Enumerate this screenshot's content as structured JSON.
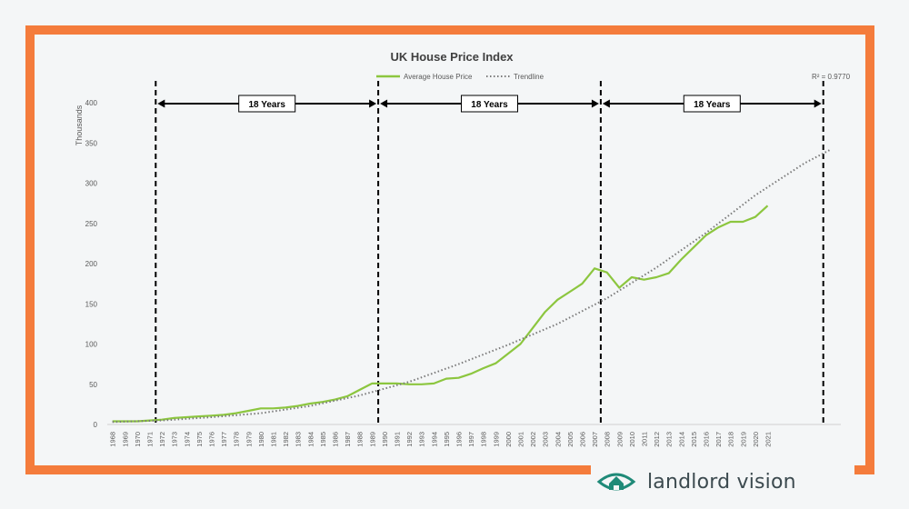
{
  "brand": {
    "name": "landlord vision",
    "icon": "eye-house-icon",
    "color": "#1f8a78"
  },
  "frame_color": "#f47c3c",
  "chart_data": {
    "type": "line",
    "title": "UK House Price Index",
    "ylabel": "Thousands",
    "xlabel": "",
    "ylim": [
      0,
      420
    ],
    "yticks": [
      0,
      50,
      100,
      150,
      200,
      250,
      300,
      350,
      400
    ],
    "grid": false,
    "legend_position": "top-center",
    "x_ticks": [
      "1968",
      "1969",
      "1970",
      "1971",
      "1972",
      "1973",
      "1974",
      "1975",
      "1976",
      "1977",
      "1978",
      "1979",
      "1980",
      "1981",
      "1982",
      "1983",
      "1984",
      "1985",
      "1986",
      "1987",
      "1988",
      "1989",
      "1990",
      "1991",
      "1992",
      "1993",
      "1994",
      "1995",
      "1996",
      "1997",
      "1998",
      "1999",
      "2000",
      "2001",
      "2002",
      "2003",
      "2004",
      "2005",
      "2006",
      "2007",
      "2008",
      "2009",
      "2010",
      "2011",
      "2012",
      "2013",
      "2014",
      "2015",
      "2016",
      "2017",
      "2018",
      "2019",
      "2020",
      "2021"
    ],
    "series": [
      {
        "name": "Average House Price",
        "color": "#8cc63f",
        "style": "solid",
        "x": [
          1968,
          1969,
          1970,
          1971,
          1972,
          1973,
          1974,
          1975,
          1976,
          1977,
          1978,
          1979,
          1980,
          1981,
          1982,
          1983,
          1984,
          1985,
          1986,
          1987,
          1988,
          1989,
          1990,
          1991,
          1992,
          1993,
          1994,
          1995,
          1996,
          1997,
          1998,
          1999,
          2000,
          2001,
          2002,
          2003,
          2004,
          2005,
          2006,
          2007,
          2008,
          2009,
          2010,
          2011,
          2012,
          2013,
          2014,
          2015,
          2016,
          2017,
          2018,
          2019,
          2020,
          2021
        ],
        "values": [
          4,
          4,
          4,
          5,
          6,
          8,
          9,
          10,
          11,
          12,
          14,
          17,
          20,
          20,
          21,
          23,
          26,
          28,
          31,
          35,
          43,
          51,
          51,
          51,
          50,
          50,
          51,
          57,
          58,
          63,
          70,
          76,
          88,
          100,
          120,
          140,
          155,
          165,
          175,
          194,
          189,
          170,
          183,
          180,
          183,
          188,
          205,
          220,
          235,
          245,
          252,
          252,
          258,
          272
        ]
      },
      {
        "name": "Trendline",
        "color": "#7a7a7a",
        "style": "dotted",
        "x": [
          1968,
          1972,
          1976,
          1980,
          1984,
          1988,
          1992,
          1996,
          2000,
          2004,
          2008,
          2012,
          2016,
          2020,
          2024,
          2026
        ],
        "values": [
          3,
          5,
          9,
          14,
          23,
          36,
          53,
          75,
          99,
          125,
          157,
          195,
          238,
          285,
          325,
          341
        ]
      }
    ],
    "annotations": {
      "r_squared": "R² = 0.9770",
      "cycles": [
        {
          "label": "18 Years",
          "from": 1971.5,
          "to": 1989.5
        },
        {
          "label": "18 Years",
          "from": 1989.5,
          "to": 2007.5
        },
        {
          "label": "18 Years",
          "from": 2007.5,
          "to": 2025.5
        }
      ],
      "boundaries": [
        1971.5,
        1989.5,
        2007.5,
        2025.5
      ]
    }
  }
}
